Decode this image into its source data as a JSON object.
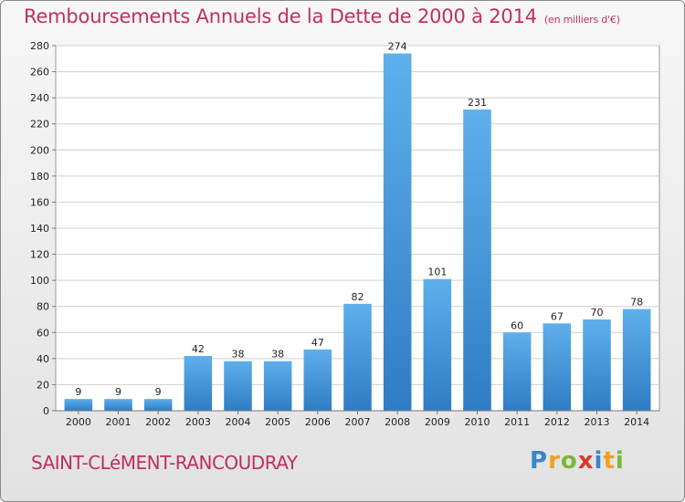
{
  "title": "Remboursements Annuels de la Dette de 2000 à 2014",
  "title_unit": "(en milliers d'€)",
  "commune": "SAINT-CLéMENT-RANCOUDRAY",
  "logo": {
    "text": "Proxiti"
  },
  "colors": {
    "title": "#c0305a",
    "bar_light": "#5eb0ec",
    "bar_dark": "#2f7cc4",
    "grid": "#cfcfcf"
  },
  "chart_data": {
    "type": "bar",
    "title": "Remboursements Annuels de la Dette de 2000 à 2014",
    "xlabel": "",
    "ylabel": "",
    "categories": [
      "2000",
      "2001",
      "2002",
      "2003",
      "2004",
      "2005",
      "2006",
      "2007",
      "2008",
      "2009",
      "2010",
      "2011",
      "2012",
      "2013",
      "2014"
    ],
    "values": [
      9,
      9,
      9,
      42,
      38,
      38,
      47,
      82,
      274,
      101,
      231,
      60,
      67,
      70,
      78
    ],
    "ylim": [
      0,
      280
    ],
    "yticks": [
      0,
      20,
      40,
      60,
      80,
      100,
      120,
      140,
      160,
      180,
      200,
      220,
      240,
      260,
      280
    ],
    "grid": true,
    "show_value_labels": true
  }
}
